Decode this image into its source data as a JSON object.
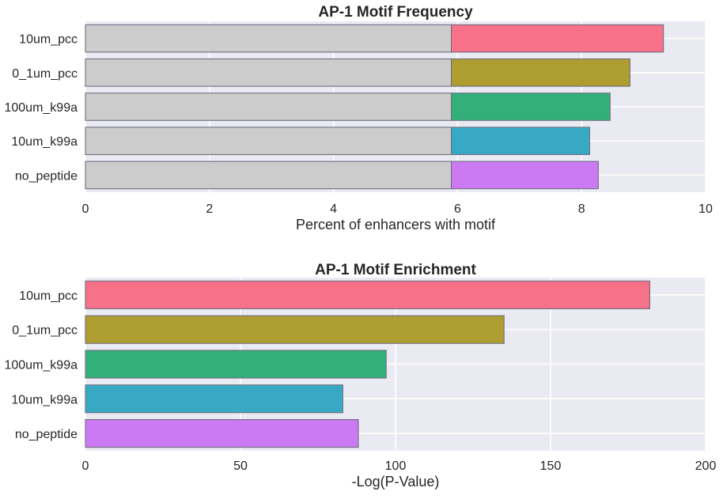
{
  "chart_data": [
    {
      "type": "bar",
      "orientation": "horizontal",
      "stacked": true,
      "title": "AP-1 Motif Frequency",
      "xlabel": "Percent of enhancers with motif",
      "ylabel": "",
      "categories": [
        "10um_pcc",
        "0_1um_pcc",
        "100um_k99a",
        "10um_k99a",
        "no_peptide"
      ],
      "series": [
        {
          "values": [
            5.9,
            5.9,
            5.9,
            5.9,
            5.9
          ]
        },
        {
          "values": [
            3.42,
            2.88,
            2.56,
            2.23,
            2.37
          ]
        }
      ],
      "xlim": [
        0,
        10
      ],
      "xticks": [
        0,
        2,
        4,
        6,
        8,
        10
      ],
      "grid": true
    },
    {
      "type": "bar",
      "orientation": "horizontal",
      "title": "AP-1 Motif Enrichment",
      "xlabel": "-Log(P-Value)",
      "ylabel": "",
      "categories": [
        "10um_pcc",
        "0_1um_pcc",
        "100um_k99a",
        "10um_k99a",
        "no_peptide"
      ],
      "values": [
        182,
        135,
        97,
        83,
        88
      ],
      "xlim": [
        0,
        200
      ],
      "xticks": [
        0,
        50,
        100,
        150,
        200
      ],
      "grid": true
    }
  ],
  "colors": {
    "background": "#eaeaf2",
    "grid": "#ffffff",
    "baseline_bar": "#cccccc",
    "edge": "#6e6e80",
    "bars": [
      "#f77189",
      "#ae9d31",
      "#33b07a",
      "#38a9c5",
      "#cc7af4"
    ]
  }
}
